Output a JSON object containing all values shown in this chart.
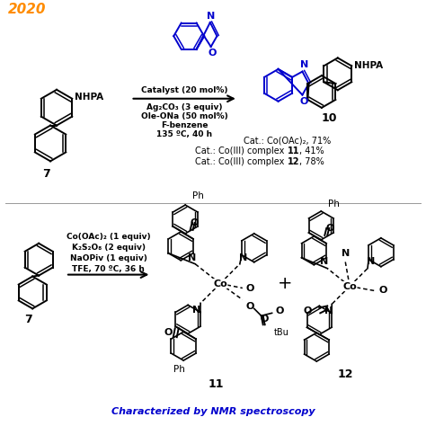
{
  "background_color": "#ffffff",
  "year_text": "2020",
  "year_color": "#FF8C00",
  "reagents_top": [
    "Catalyst (20 mol%)",
    "Ag₂CO₃ (3 equiv)",
    "Ole-ONa (50 mol%)",
    "F-benzene",
    "135 ºC, 40 h"
  ],
  "yields": [
    "Cat.: Co(OAc)₂, 71%",
    "Cat.: Co(III) complex ​11, 41%",
    "Cat.: Co(III) complex ​12, 78%"
  ],
  "yields_bold": [
    "11",
    "12"
  ],
  "reagents_bottom": [
    "Co(OAc)₂ (1 equiv)",
    "K₂S₂O₈ (2 equiv)",
    "NaOPiv (1 equiv)",
    "TFE, 70 ºC, 36 h"
  ],
  "label7": "7",
  "label10": "10",
  "label11": "11",
  "label12": "12",
  "footer_text": "Characterized by NMR spectroscopy",
  "footer_color": "#0000CD"
}
